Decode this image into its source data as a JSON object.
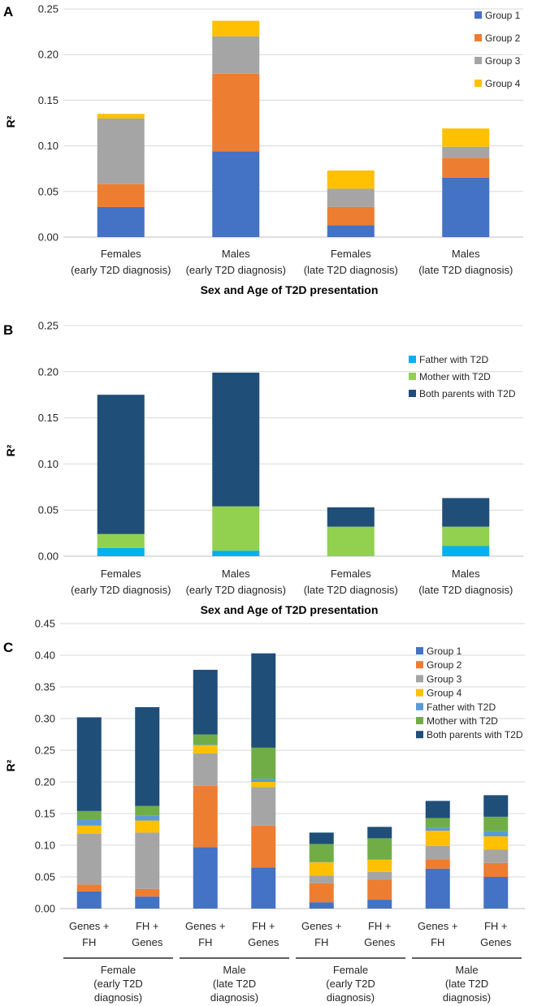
{
  "chart_data": [
    {
      "panel": "A",
      "type": "bar",
      "stacked": true,
      "categories": [
        [
          "Females",
          "(early T2D diagnosis)"
        ],
        [
          "Males",
          "(early T2D diagnosis)"
        ],
        [
          "Females",
          "(late T2D diagnosis)"
        ],
        [
          "Males",
          "(late T2D diagnosis)"
        ]
      ],
      "series": [
        {
          "name": "Group 1",
          "color": "#4472C4",
          "values": [
            0.033,
            0.094,
            0.013,
            0.065
          ]
        },
        {
          "name": "Group 2",
          "color": "#ED7D31",
          "values": [
            0.025,
            0.085,
            0.02,
            0.022
          ]
        },
        {
          "name": "Group 3",
          "color": "#A5A5A5",
          "values": [
            0.072,
            0.041,
            0.02,
            0.012
          ]
        },
        {
          "name": "Group 4",
          "color": "#FFC000",
          "values": [
            0.005,
            0.017,
            0.02,
            0.02
          ]
        }
      ],
      "ylim": [
        0,
        0.25
      ],
      "yticks": [
        "0.00",
        "0.05",
        "0.10",
        "0.15",
        "0.20",
        "0.25"
      ],
      "ylabel": "R²",
      "xlabel": "Sex and Age of T2D presentation",
      "legend": "top-right"
    },
    {
      "panel": "B",
      "type": "bar",
      "stacked": true,
      "categories": [
        [
          "Females",
          "(early T2D diagnosis)"
        ],
        [
          "Males",
          "(early T2D diagnosis)"
        ],
        [
          "Females",
          "(late T2D diagnosis)"
        ],
        [
          "Males",
          "(late T2D diagnosis)"
        ]
      ],
      "series": [
        {
          "name": "Father with T2D",
          "color": "#00B0F0",
          "values": [
            0.009,
            0.006,
            0.0,
            0.011
          ]
        },
        {
          "name": "Mother with T2D",
          "color": "#92D050",
          "values": [
            0.015,
            0.048,
            0.032,
            0.021
          ]
        },
        {
          "name": "Both parents with T2D",
          "color": "#1F4E79",
          "values": [
            0.151,
            0.145,
            0.021,
            0.031
          ]
        }
      ],
      "ylim": [
        0,
        0.25
      ],
      "yticks": [
        "0.00",
        "0.05",
        "0.10",
        "0.15",
        "0.20",
        "0.25"
      ],
      "ylabel": "R²",
      "xlabel": "Sex and Age of T2D presentation",
      "legend": "top-right"
    },
    {
      "panel": "C",
      "type": "bar",
      "stacked": true,
      "categories": [
        [
          "Genes +",
          "FH"
        ],
        [
          "FH +",
          "Genes"
        ],
        [
          "Genes +",
          "FH"
        ],
        [
          "FH +",
          "Genes"
        ],
        [
          "Genes +",
          "FH"
        ],
        [
          "FH +",
          "Genes"
        ],
        [
          "Genes +",
          "FH"
        ],
        [
          "FH +",
          "Genes"
        ]
      ],
      "groups": [
        [
          "Female",
          "(early T2D",
          "diagnosis)"
        ],
        [
          "Male",
          "(late T2D",
          "diagnosis)"
        ],
        [
          "Female",
          "(early T2D",
          "diagnosis)"
        ],
        [
          "Male",
          "(late T2D",
          "diagnosis)"
        ]
      ],
      "series": [
        {
          "name": "Group 1",
          "color": "#4472C4",
          "values": [
            0.027,
            0.019,
            0.097,
            0.065,
            0.01,
            0.014,
            0.063,
            0.05
          ]
        },
        {
          "name": "Group 2",
          "color": "#ED7D31",
          "values": [
            0.011,
            0.012,
            0.097,
            0.066,
            0.03,
            0.032,
            0.015,
            0.022
          ]
        },
        {
          "name": "Group 3",
          "color": "#A5A5A5",
          "values": [
            0.08,
            0.089,
            0.051,
            0.061,
            0.012,
            0.012,
            0.021,
            0.021
          ]
        },
        {
          "name": "Group 4",
          "color": "#FFC000",
          "values": [
            0.013,
            0.019,
            0.013,
            0.008,
            0.021,
            0.019,
            0.024,
            0.021
          ]
        },
        {
          "name": "Father with T2D",
          "color": "#5B9BD5",
          "values": [
            0.01,
            0.008,
            0.001,
            0.005,
            0.001,
            0.001,
            0.005,
            0.008
          ]
        },
        {
          "name": "Mother with T2D",
          "color": "#70AD47",
          "values": [
            0.013,
            0.015,
            0.016,
            0.049,
            0.028,
            0.033,
            0.015,
            0.023
          ]
        },
        {
          "name": "Both parents with T2D",
          "color": "#1F4E79",
          "values": [
            0.148,
            0.156,
            0.102,
            0.149,
            0.018,
            0.018,
            0.027,
            0.034
          ]
        }
      ],
      "ylim": [
        0,
        0.45
      ],
      "yticks": [
        "0.00",
        "0.05",
        "0.10",
        "0.15",
        "0.20",
        "0.25",
        "0.30",
        "0.35",
        "0.40",
        "0.45"
      ],
      "ylabel": "R²",
      "legend": "top-right"
    }
  ]
}
